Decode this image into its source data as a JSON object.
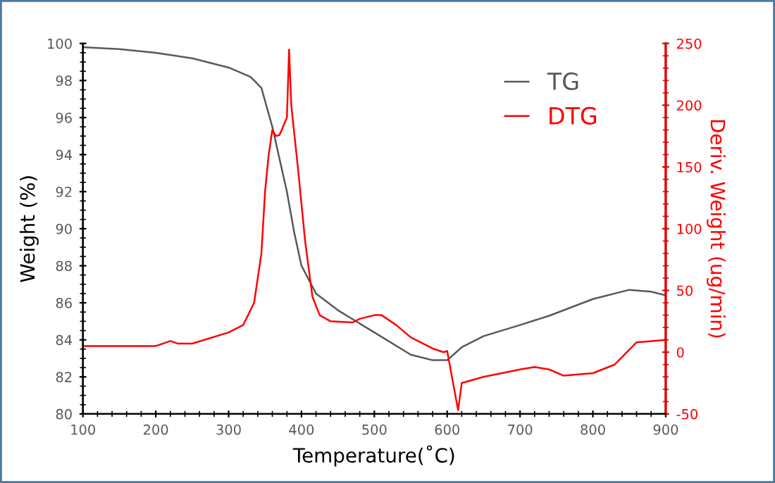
{
  "chart_data": {
    "type": "line",
    "xlabel": "Temperature(˚C)",
    "ylabel": "Weight (%)",
    "y2label": "Deriv. Weight (ug/min)",
    "xlim": [
      100,
      900
    ],
    "xticks": [
      100,
      200,
      300,
      400,
      500,
      600,
      700,
      800,
      900
    ],
    "ylim": [
      80,
      100
    ],
    "yticks": [
      80,
      82,
      84,
      86,
      88,
      90,
      92,
      94,
      96,
      98,
      100
    ],
    "y2lim": [
      -50,
      250
    ],
    "y2ticks": [
      -50,
      0,
      50,
      100,
      150,
      200,
      250
    ],
    "grid": false,
    "legend": "top right",
    "marker": "none",
    "line_style": "solid",
    "series": [
      {
        "name": "TG",
        "color": "#595959",
        "x": [
          100,
          150,
          200,
          250,
          300,
          330,
          345,
          360,
          380,
          390,
          400,
          420,
          450,
          500,
          550,
          580,
          600,
          620,
          650,
          700,
          740,
          800,
          850,
          880,
          900
        ],
        "values": [
          99.8,
          99.7,
          99.5,
          99.2,
          98.7,
          98.2,
          97.6,
          95.5,
          92,
          89.8,
          88,
          86.5,
          85.6,
          84.4,
          83.2,
          82.9,
          82.9,
          83.6,
          84.2,
          84.8,
          85.3,
          86.2,
          86.7,
          86.6,
          86.4
        ]
      },
      {
        "name": "DTG",
        "color": "#ff0000",
        "axis": "y2",
        "x": [
          100,
          200,
          220,
          230,
          250,
          300,
          320,
          335,
          345,
          350,
          355,
          360,
          365,
          370,
          380,
          383,
          386,
          395,
          405,
          415,
          425,
          440,
          470,
          480,
          500,
          510,
          530,
          550,
          580,
          595,
          600,
          615,
          620,
          650,
          700,
          720,
          740,
          760,
          800,
          830,
          860,
          900
        ],
        "values": [
          5,
          5,
          9,
          7,
          7,
          16,
          22,
          40,
          80,
          130,
          160,
          180,
          175,
          176,
          190,
          245,
          200,
          150,
          90,
          45,
          30,
          25,
          24,
          27,
          30,
          30,
          22,
          12,
          3,
          0,
          1,
          -47,
          -25,
          -20,
          -14,
          -12,
          -14,
          -19,
          -17,
          -10,
          8,
          10
        ]
      }
    ]
  }
}
